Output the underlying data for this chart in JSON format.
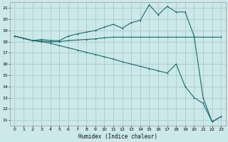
{
  "xlabel": "Humidex (Indice chaleur)",
  "bg_color": "#cce8e8",
  "grid_color": "#aacccc",
  "line_color": "#1a6b6b",
  "xlim": [
    -0.5,
    23.5
  ],
  "ylim": [
    10.5,
    21.5
  ],
  "yticks": [
    11,
    12,
    13,
    14,
    15,
    16,
    17,
    18,
    19,
    20,
    21
  ],
  "xticks": [
    0,
    1,
    2,
    3,
    4,
    5,
    6,
    7,
    8,
    9,
    10,
    11,
    12,
    13,
    14,
    15,
    16,
    17,
    18,
    19,
    20,
    21,
    22,
    23
  ],
  "line1_x": [
    0,
    1,
    2,
    3,
    4,
    5,
    6,
    7,
    8,
    9,
    10,
    11,
    12,
    13,
    14,
    15,
    16,
    17,
    18,
    19,
    20,
    21,
    22,
    23
  ],
  "line1_y": [
    18.5,
    18.3,
    18.1,
    18.2,
    18.1,
    18.1,
    18.5,
    18.7,
    18.85,
    19.0,
    19.3,
    19.55,
    19.2,
    19.7,
    19.9,
    21.3,
    20.4,
    21.15,
    20.65,
    20.65,
    18.5,
    13.0,
    10.85,
    11.3
  ],
  "line2_x": [
    0,
    1,
    2,
    3,
    4,
    5,
    6,
    7,
    8,
    9,
    10,
    11,
    12,
    13,
    14,
    15,
    16,
    17,
    18,
    19,
    20,
    21,
    22,
    23
  ],
  "line2_y": [
    18.5,
    18.3,
    18.1,
    18.05,
    18.0,
    18.0,
    18.1,
    18.15,
    18.2,
    18.25,
    18.35,
    18.4,
    18.4,
    18.4,
    18.4,
    18.4,
    18.4,
    18.4,
    18.4,
    18.4,
    18.4,
    18.4,
    18.4,
    18.4
  ],
  "line3_x": [
    0,
    1,
    2,
    3,
    4,
    5,
    6,
    7,
    8,
    9,
    10,
    11,
    12,
    13,
    14,
    15,
    16,
    17,
    18,
    19,
    20,
    21,
    22,
    23
  ],
  "line3_y": [
    18.5,
    18.3,
    18.1,
    18.0,
    17.85,
    17.65,
    17.45,
    17.25,
    17.05,
    16.85,
    16.65,
    16.45,
    16.2,
    16.0,
    15.8,
    15.6,
    15.4,
    15.2,
    16.0,
    14.0,
    13.0,
    12.5,
    10.85,
    11.3
  ]
}
